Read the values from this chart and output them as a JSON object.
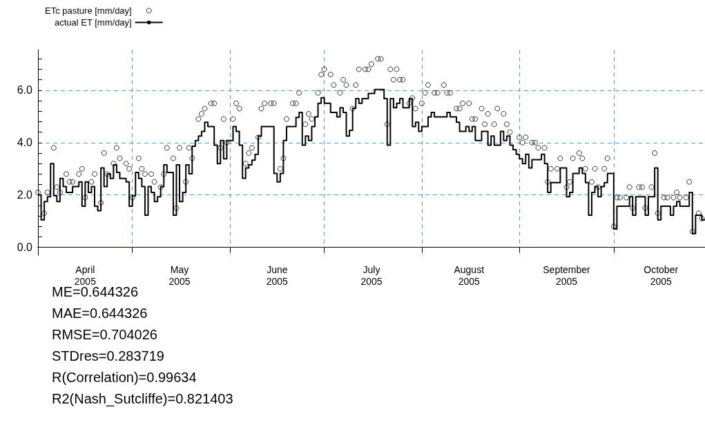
{
  "chart_data": {
    "type": "step",
    "legend": "top left",
    "grid": true,
    "xlim": [
      "2005-04-01",
      "2005-10-30"
    ],
    "xticks": [
      {
        "value": "2005-04-01",
        "label": null
      },
      {
        "value": "2005-04-16",
        "label": "April\n2005"
      },
      {
        "value": "2005-05-01",
        "label": null
      },
      {
        "value": "2005-05-16",
        "label": "May\n2005"
      },
      {
        "value": "2005-06-01",
        "label": null
      },
      {
        "value": "2005-06-16",
        "label": "June\n2005"
      },
      {
        "value": "2005-07-01",
        "label": null
      },
      {
        "value": "2005-07-16",
        "label": "July\n2005"
      },
      {
        "value": "2005-08-01",
        "label": null
      },
      {
        "value": "2005-08-16",
        "label": "August\n2005"
      },
      {
        "value": "2005-09-01",
        "label": null
      },
      {
        "value": "2005-09-16",
        "label": "September\n2005"
      },
      {
        "value": "2005-10-01",
        "label": null
      },
      {
        "value": "2005-10-16",
        "label": "October\n2005"
      }
    ],
    "ylim": [
      -0.3,
      7.55
    ],
    "yticks": [
      {
        "value": 0,
        "label": "0.0"
      },
      {
        "value": 0.4,
        "label": null
      },
      {
        "value": 0.8,
        "label": null
      },
      {
        "value": 1.2,
        "label": null
      },
      {
        "value": 1.6,
        "label": null
      },
      {
        "value": 2,
        "label": "2.0"
      },
      {
        "value": 2.4,
        "label": null
      },
      {
        "value": 2.8,
        "label": null
      },
      {
        "value": 3.2,
        "label": null
      },
      {
        "value": 3.6,
        "label": null
      },
      {
        "value": 4,
        "label": "4.0"
      },
      {
        "value": 4.4,
        "label": null
      },
      {
        "value": 4.8,
        "label": null
      },
      {
        "value": 5.2,
        "label": null
      },
      {
        "value": 5.6,
        "label": null
      },
      {
        "value": 6,
        "label": "6.0"
      },
      {
        "value": 6.4,
        "label": null
      },
      {
        "value": 6.8,
        "label": null
      },
      {
        "value": 7.2,
        "label": null
      }
    ],
    "annotations": [
      "ME=0.644326",
      "MAE=0.644326",
      "RMSE=0.704026",
      "STDres=0.283719",
      "R(Correlation)=0.99634",
      "R2(Nash_Sutcliffe)=0.821403"
    ],
    "series": [
      {
        "name": "ETc pasture [mm/day]",
        "type": "scatter",
        "marker": "circle",
        "color": "#000000",
        "x": [
          "2005-04-01",
          "2005-04-03",
          "2005-04-04",
          "2005-04-06",
          "2005-04-07",
          "2005-04-08",
          "2005-04-10",
          "2005-04-11",
          "2005-04-12",
          "2005-04-14",
          "2005-04-15",
          "2005-04-16",
          "2005-04-18",
          "2005-04-19",
          "2005-04-21",
          "2005-04-22",
          "2005-04-23",
          "2005-04-25",
          "2005-04-26",
          "2005-04-27",
          "2005-04-29",
          "2005-04-30",
          "2005-05-01",
          "2005-05-03",
          "2005-05-04",
          "2005-05-05",
          "2005-05-07",
          "2005-05-08",
          "2005-05-10",
          "2005-05-11",
          "2005-05-12",
          "2005-05-14",
          "2005-05-15",
          "2005-05-16",
          "2005-05-18",
          "2005-05-19",
          "2005-05-20",
          "2005-05-22",
          "2005-05-23",
          "2005-05-24",
          "2005-05-26",
          "2005-05-27",
          "2005-05-29",
          "2005-05-30",
          "2005-05-31",
          "2005-06-02",
          "2005-06-03",
          "2005-06-04",
          "2005-06-06",
          "2005-06-07",
          "2005-06-08",
          "2005-06-10",
          "2005-06-11",
          "2005-06-12",
          "2005-06-14",
          "2005-06-15",
          "2005-06-17",
          "2005-06-18",
          "2005-06-19",
          "2005-06-21",
          "2005-06-22",
          "2005-06-23",
          "2005-06-25",
          "2005-06-26",
          "2005-06-27",
          "2005-06-29",
          "2005-06-30",
          "2005-07-01",
          "2005-07-03",
          "2005-07-04",
          "2005-07-06",
          "2005-07-07",
          "2005-07-08",
          "2005-07-10",
          "2005-07-11",
          "2005-07-12",
          "2005-07-14",
          "2005-07-15",
          "2005-07-16",
          "2005-07-18",
          "2005-07-19",
          "2005-07-21",
          "2005-07-22",
          "2005-07-23",
          "2005-07-24",
          "2005-07-25",
          "2005-07-26",
          "2005-07-28",
          "2005-07-29",
          "2005-07-30",
          "2005-08-01",
          "2005-08-02",
          "2005-08-03",
          "2005-08-05",
          "2005-08-06",
          "2005-08-08",
          "2005-08-09",
          "2005-08-10",
          "2005-08-12",
          "2005-08-13",
          "2005-08-14",
          "2005-08-16",
          "2005-08-17",
          "2005-08-18",
          "2005-08-20",
          "2005-08-21",
          "2005-08-22",
          "2005-08-24",
          "2005-08-25",
          "2005-08-27",
          "2005-08-28",
          "2005-08-29",
          "2005-09-01",
          "2005-09-02",
          "2005-09-03",
          "2005-09-05",
          "2005-09-06",
          "2005-09-07",
          "2005-09-09",
          "2005-09-10",
          "2005-09-11",
          "2005-09-13",
          "2005-09-14",
          "2005-09-16",
          "2005-09-17",
          "2005-09-18",
          "2005-09-20",
          "2005-09-21",
          "2005-09-22",
          "2005-09-24",
          "2005-09-25",
          "2005-09-26",
          "2005-09-28",
          "2005-09-29",
          "2005-10-01",
          "2005-10-02",
          "2005-10-03",
          "2005-10-05",
          "2005-10-06",
          "2005-10-07",
          "2005-10-09",
          "2005-10-10",
          "2005-10-11",
          "2005-10-13",
          "2005-10-14",
          "2005-10-15",
          "2005-10-17",
          "2005-10-18",
          "2005-10-20",
          "2005-10-21",
          "2005-10-22",
          "2005-10-24",
          "2005-10-25",
          "2005-10-26",
          "2005-10-28",
          "2005-10-29"
        ],
        "values": [
          2.1,
          1.3,
          2.1,
          3.8,
          2.3,
          2.1,
          2.8,
          2.5,
          2.5,
          2.8,
          3.0,
          1.9,
          2.5,
          2.8,
          1.7,
          3.6,
          2.8,
          3.2,
          3.8,
          3.4,
          3.2,
          3.0,
          1.9,
          3.4,
          3.0,
          2.8,
          2.8,
          2.5,
          2.3,
          2.8,
          3.8,
          3.4,
          1.5,
          3.8,
          2.5,
          3.8,
          3.4,
          4.9,
          5.1,
          5.3,
          5.5,
          5.5,
          3.8,
          4.9,
          4.0,
          4.9,
          5.5,
          5.3,
          3.2,
          3.6,
          3.8,
          4.2,
          5.3,
          5.5,
          5.5,
          5.5,
          3.0,
          3.4,
          4.9,
          5.5,
          5.5,
          5.9,
          4.7,
          5.1,
          4.9,
          5.9,
          6.6,
          6.8,
          6.6,
          6.2,
          5.9,
          6.4,
          6.2,
          5.3,
          6.2,
          6.8,
          6.8,
          6.8,
          7.0,
          7.2,
          7.2,
          4.7,
          6.8,
          6.4,
          6.8,
          6.4,
          6.4,
          5.5,
          5.7,
          5.3,
          5.5,
          5.9,
          6.2,
          5.9,
          5.9,
          6.2,
          5.9,
          5.9,
          5.3,
          5.3,
          5.5,
          5.5,
          4.9,
          4.9,
          5.3,
          4.7,
          5.1,
          4.7,
          5.3,
          5.1,
          4.7,
          4.4,
          4.2,
          4.0,
          4.2,
          4.0,
          4.0,
          3.8,
          3.8,
          2.5,
          3.0,
          3.0,
          3.4,
          2.3,
          2.5,
          3.4,
          3.6,
          3.4,
          3.0,
          2.5,
          3.0,
          2.3,
          3.0,
          3.4,
          0.8,
          1.9,
          1.9,
          1.9,
          2.3,
          1.5,
          2.3,
          2.3,
          1.5,
          2.3,
          3.6,
          1.3,
          1.9,
          1.9,
          1.9,
          2.1,
          1.9,
          1.9,
          2.5,
          0.6,
          1.3,
          1.1
        ]
      },
      {
        "name": "actual ET [mm/day]",
        "marker": "none",
        "line_style": "solid",
        "color": "#000000",
        "x": [
          "2005-04-01",
          "2005-04-02",
          "2005-04-03",
          "2005-04-04",
          "2005-04-05",
          "2005-04-06",
          "2005-04-07",
          "2005-04-08",
          "2005-04-09",
          "2005-04-10",
          "2005-04-12",
          "2005-04-14",
          "2005-04-15",
          "2005-04-16",
          "2005-04-17",
          "2005-04-18",
          "2005-04-19",
          "2005-04-20",
          "2005-04-21",
          "2005-04-22",
          "2005-04-23",
          "2005-04-24",
          "2005-04-25",
          "2005-04-26",
          "2005-04-27",
          "2005-04-29",
          "2005-04-30",
          "2005-05-01",
          "2005-05-02",
          "2005-05-03",
          "2005-05-04",
          "2005-05-05",
          "2005-05-06",
          "2005-05-07",
          "2005-05-08",
          "2005-05-09",
          "2005-05-10",
          "2005-05-11",
          "2005-05-12",
          "2005-05-14",
          "2005-05-15",
          "2005-05-16",
          "2005-05-17",
          "2005-05-18",
          "2005-05-19",
          "2005-05-20",
          "2005-05-21",
          "2005-05-22",
          "2005-05-23",
          "2005-05-24",
          "2005-05-25",
          "2005-05-27",
          "2005-05-28",
          "2005-05-29",
          "2005-05-30",
          "2005-05-31",
          "2005-06-02",
          "2005-06-03",
          "2005-06-04",
          "2005-06-05",
          "2005-06-06",
          "2005-06-07",
          "2005-06-08",
          "2005-06-09",
          "2005-06-10",
          "2005-06-11",
          "2005-06-15",
          "2005-06-16",
          "2005-06-17",
          "2005-06-18",
          "2005-06-19",
          "2005-06-22",
          "2005-06-23",
          "2005-06-24",
          "2005-06-25",
          "2005-06-26",
          "2005-06-27",
          "2005-06-28",
          "2005-06-29",
          "2005-06-30",
          "2005-07-01",
          "2005-07-03",
          "2005-07-05",
          "2005-07-06",
          "2005-07-07",
          "2005-07-08",
          "2005-07-09",
          "2005-07-10",
          "2005-07-11",
          "2005-07-12",
          "2005-07-13",
          "2005-07-15",
          "2005-07-17",
          "2005-07-20",
          "2005-07-21",
          "2005-07-22",
          "2005-07-23",
          "2005-07-24",
          "2005-07-25",
          "2005-07-26",
          "2005-07-28",
          "2005-07-29",
          "2005-07-30",
          "2005-07-31",
          "2005-08-01",
          "2005-08-03",
          "2005-08-04",
          "2005-08-05",
          "2005-08-09",
          "2005-08-10",
          "2005-08-12",
          "2005-08-13",
          "2005-08-15",
          "2005-08-16",
          "2005-08-17",
          "2005-08-18",
          "2005-08-20",
          "2005-08-22",
          "2005-08-23",
          "2005-08-24",
          "2005-08-26",
          "2005-08-27",
          "2005-08-28",
          "2005-08-29",
          "2005-08-30",
          "2005-08-31",
          "2005-09-01",
          "2005-09-02",
          "2005-09-03",
          "2005-09-04",
          "2005-09-05",
          "2005-09-08",
          "2005-09-09",
          "2005-09-10",
          "2005-09-11",
          "2005-09-14",
          "2005-09-16",
          "2005-09-17",
          "2005-09-18",
          "2005-09-20",
          "2005-09-21",
          "2005-09-22",
          "2005-09-23",
          "2005-09-24",
          "2005-09-25",
          "2005-09-26",
          "2005-09-27",
          "2005-09-28",
          "2005-09-29",
          "2005-10-01",
          "2005-10-02",
          "2005-10-06",
          "2005-10-07",
          "2005-10-08",
          "2005-10-11",
          "2005-10-12",
          "2005-10-14",
          "2005-10-15",
          "2005-10-16",
          "2005-10-19",
          "2005-10-20",
          "2005-10-21",
          "2005-10-22",
          "2005-10-25",
          "2005-10-26",
          "2005-10-27",
          "2005-10-29",
          "2005-10-30"
        ],
        "values": [
          2.0,
          1.05,
          1.75,
          1.93,
          3.2,
          1.97,
          1.75,
          2.63,
          2.32,
          2.1,
          2.32,
          2.5,
          1.57,
          2.5,
          2.1,
          2.32,
          1.57,
          1.4,
          3.03,
          2.32,
          2.81,
          2.63,
          3.15,
          2.86,
          2.63,
          2.5,
          1.57,
          1.97,
          2.86,
          2.63,
          2.32,
          1.23,
          2.32,
          2.1,
          1.75,
          1.93,
          2.32,
          3.15,
          2.86,
          1.23,
          3.15,
          1.75,
          2.1,
          3.15,
          2.81,
          3.86,
          4.08,
          4.25,
          4.43,
          4.78,
          4.61,
          3.9,
          3.2,
          4.08,
          3.38,
          4.08,
          4.61,
          4.43,
          3.9,
          2.64,
          3.03,
          3.15,
          3.33,
          3.55,
          4.25,
          4.61,
          2.82,
          2.5,
          2.82,
          4.08,
          4.61,
          4.96,
          5.15,
          3.9,
          4.25,
          4.08,
          4.61,
          4.98,
          5.5,
          5.71,
          5.5,
          5.15,
          4.98,
          5.33,
          5.15,
          4.25,
          4.47,
          5.31,
          5.68,
          5.5,
          5.68,
          5.88,
          6.03,
          5.68,
          3.9,
          5.68,
          5.33,
          5.5,
          5.68,
          5.33,
          5.68,
          4.61,
          4.78,
          4.43,
          4.61,
          4.98,
          5.15,
          4.98,
          5.15,
          4.98,
          4.78,
          4.43,
          4.61,
          4.43,
          4.61,
          4.08,
          4.43,
          3.9,
          4.25,
          3.9,
          4.43,
          4.08,
          4.25,
          3.9,
          3.73,
          3.55,
          3.38,
          3.2,
          3.55,
          3.03,
          3.35,
          3.55,
          3.2,
          2.1,
          2.47,
          3.03,
          1.93,
          2.1,
          2.82,
          3.03,
          2.82,
          2.47,
          1.23,
          2.1,
          2.32,
          1.93,
          2.32,
          2.47,
          2.82,
          0.7,
          1.57,
          1.93,
          1.23,
          1.93,
          1.23,
          1.93,
          3.03,
          1.05,
          1.57,
          1.23,
          1.57,
          1.75,
          1.57,
          2.1,
          0.52,
          1.23,
          1.05,
          1.05
        ]
      }
    ]
  }
}
